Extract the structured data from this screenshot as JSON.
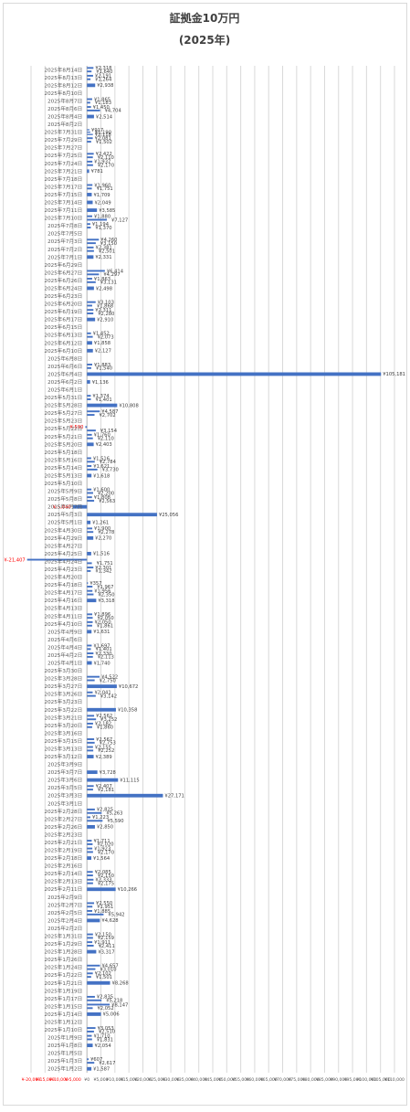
{
  "chart_data": {
    "type": "bar",
    "orientation": "horizontal",
    "title": "証拠金10万円",
    "subtitle": "(2025年)",
    "xlabel": "",
    "ylabel": "",
    "xlim": [
      -20000,
      110000
    ],
    "grid": true,
    "bar_color": "#4472c4",
    "negative_label_color": "#ff0000",
    "tick_labels": [
      "¥-20,000",
      "¥-15,000",
      "¥-10,000",
      "¥-5,000",
      "¥0",
      "¥5,000",
      "¥10,000",
      "¥15,000",
      "¥20,000",
      "¥25,000",
      "¥30,000",
      "¥35,000",
      "¥40,000",
      "¥45,000",
      "¥50,000",
      "¥55,000",
      "¥60,000",
      "¥65,000",
      "¥70,000",
      "¥75,000",
      "¥80,000",
      "¥85,000",
      "¥90,000",
      "¥95,000",
      "¥100,000",
      "¥105,000",
      "¥110,000"
    ],
    "tick_values": [
      -20000,
      -15000,
      -10000,
      -5000,
      0,
      5000,
      10000,
      15000,
      20000,
      25000,
      30000,
      35000,
      40000,
      45000,
      50000,
      55000,
      60000,
      65000,
      70000,
      75000,
      80000,
      85000,
      90000,
      95000,
      100000,
      105000,
      110000
    ],
    "rows": [
      {
        "date": "2025年8月14日",
        "values": [
          2318,
          1640
        ]
      },
      {
        "date": "2025年8月13日",
        "values": [
          2191,
          1264
        ]
      },
      {
        "date": "2025年8月12日",
        "values": [
          2938
        ]
      },
      {
        "date": "2025年8月10日",
        "values": []
      },
      {
        "date": "2025年8月7日",
        "values": [
          1865,
          1183
        ]
      },
      {
        "date": "2025年8月6日",
        "values": [
          1450,
          4704
        ]
      },
      {
        "date": "2025年8月4日",
        "values": [
          2514
        ]
      },
      {
        "date": "2025年8月2日",
        "values": []
      },
      {
        "date": "2025年7月31日",
        "values": [
          917,
          1190,
          2118
        ]
      },
      {
        "date": "2025年7月29日",
        "values": [
          2081,
          1502
        ]
      },
      {
        "date": "2025年7月27日",
        "values": []
      },
      {
        "date": "2025年7月25日",
        "values": [
          2422,
          2110
        ]
      },
      {
        "date": "2025年7月24日",
        "values": [
          1937,
          2170
        ]
      },
      {
        "date": "2025年7月21日",
        "values": [
          781
        ]
      },
      {
        "date": "2025年7月18日",
        "values": []
      },
      {
        "date": "2025年7月17日",
        "values": [
          1960,
          1751
        ]
      },
      {
        "date": "2025年7月15日",
        "values": [
          1709
        ]
      },
      {
        "date": "2025年7月14日",
        "values": [
          2049
        ]
      },
      {
        "date": "2025年7月11日",
        "values": [
          3585
        ]
      },
      {
        "date": "2025年7月10日",
        "values": [
          1880,
          7127
        ]
      },
      {
        "date": "2025年7月8日",
        "values": [
          1194,
          1370
        ]
      },
      {
        "date": "2025年7月5日",
        "values": []
      },
      {
        "date": "2025年7月3日",
        "values": [
          4260,
          3150
        ]
      },
      {
        "date": "2025年7月2日",
        "values": [
          2381,
          2501
        ]
      },
      {
        "date": "2025年7月1日",
        "values": [
          2331
        ]
      },
      {
        "date": "2025年6月29日",
        "values": []
      },
      {
        "date": "2025年6月27日",
        "values": [
          6414,
          4297
        ]
      },
      {
        "date": "2025年6月26日",
        "values": [
          1863,
          3131
        ]
      },
      {
        "date": "2025年6月24日",
        "values": [
          2498
        ]
      },
      {
        "date": "2025年6月23日",
        "values": []
      },
      {
        "date": "2025年6月20日",
        "values": [
          3103,
          1868
        ]
      },
      {
        "date": "2025年6月19日",
        "values": [
          2311,
          2280
        ]
      },
      {
        "date": "2025年6月17日",
        "values": [
          2910
        ]
      },
      {
        "date": "2025年6月15日",
        "values": []
      },
      {
        "date": "2025年6月13日",
        "values": [
          1452,
          2073
        ]
      },
      {
        "date": "2025年6月12日",
        "values": [
          1858
        ]
      },
      {
        "date": "2025年6月10日",
        "values": [
          2127
        ]
      },
      {
        "date": "2025年6月8日",
        "values": []
      },
      {
        "date": "2025年6月6日",
        "values": [
          1883,
          1540
        ]
      },
      {
        "date": "2025年6月4日",
        "values": [
          105181
        ]
      },
      {
        "date": "2025年6月2日",
        "values": [
          1136
        ]
      },
      {
        "date": "2025年6月1日",
        "values": []
      },
      {
        "date": "2025年5月31日",
        "values": [
          1374,
          1401
        ]
      },
      {
        "date": "2025年5月28日",
        "values": [
          10808
        ]
      },
      {
        "date": "2025年5月27日",
        "values": [
          4587,
          2702
        ]
      },
      {
        "date": "2025年5月23日",
        "values": []
      },
      {
        "date": "2025年5月22日",
        "values": [
          -590,
          3154
        ]
      },
      {
        "date": "2025年5月21日",
        "values": [
          1760,
          2110
        ]
      },
      {
        "date": "2025年5月20日",
        "values": [
          2403
        ]
      },
      {
        "date": "2025年5月18日",
        "values": []
      },
      {
        "date": "2025年5月16日",
        "values": [
          1516,
          2784
        ]
      },
      {
        "date": "2025年5月14日",
        "values": [
          1621,
          3730
        ]
      },
      {
        "date": "2025年5月13日",
        "values": [
          1618
        ]
      },
      {
        "date": "2025年5月10日",
        "values": []
      },
      {
        "date": "2025年5月9日",
        "values": [
          1600,
          2200
        ]
      },
      {
        "date": "2025年5月8日",
        "values": [
          1808,
          2563
        ]
      },
      {
        "date": "2025年5月7日",
        "values": [
          -5040
        ]
      },
      {
        "date": "2025年5月3日",
        "values": [
          25056
        ]
      },
      {
        "date": "2025年5月1日",
        "values": [
          1261
        ]
      },
      {
        "date": "2025年4月30日",
        "values": [
          1900,
          2278
        ]
      },
      {
        "date": "2025年4月29日",
        "values": [
          2270
        ]
      },
      {
        "date": "2025年4月27日",
        "values": []
      },
      {
        "date": "2025年4月25日",
        "values": [
          1516
        ]
      },
      {
        "date": "2025年4月24日",
        "values": [
          -21407,
          1751
        ]
      },
      {
        "date": "2025年4月23日",
        "values": [
          2301,
          1342
        ]
      },
      {
        "date": "2025年4月20日",
        "values": []
      },
      {
        "date": "2025年4月18日",
        "values": [
          357,
          1967
        ]
      },
      {
        "date": "2025年4月17日",
        "values": [
          1956,
          2350
        ]
      },
      {
        "date": "2025年4月16日",
        "values": [
          3318
        ]
      },
      {
        "date": "2025年4月13日",
        "values": []
      },
      {
        "date": "2025年4月11日",
        "values": [
          1896,
          2050
        ]
      },
      {
        "date": "2025年4月10日",
        "values": [
          2050,
          1861
        ]
      },
      {
        "date": "2025年4月9日",
        "values": [
          1631
        ]
      },
      {
        "date": "2025年4月6日",
        "values": []
      },
      {
        "date": "2025年4月4日",
        "values": [
          1697,
          1401
        ]
      },
      {
        "date": "2025年4月2日",
        "values": [
          2330,
          2113
        ]
      },
      {
        "date": "2025年4月1日",
        "values": [
          1740
        ]
      },
      {
        "date": "2025年3月30日",
        "values": []
      },
      {
        "date": "2025年3月28日",
        "values": [
          4522,
          2750
        ]
      },
      {
        "date": "2025年3月27日",
        "values": [
          10672
        ]
      },
      {
        "date": "2025年3月26日",
        "values": [
          2041,
          3142
        ]
      },
      {
        "date": "2025年3月23日",
        "values": []
      },
      {
        "date": "2025年3月22日",
        "values": [
          10358
        ]
      },
      {
        "date": "2025年3月21日",
        "values": [
          2562,
          3252
        ]
      },
      {
        "date": "2025年3月20日",
        "values": [
          2182,
          1860
        ]
      },
      {
        "date": "2025年3月16日",
        "values": []
      },
      {
        "date": "2025年3月15日",
        "values": [
          2567,
          2753
        ]
      },
      {
        "date": "2025年3月13日",
        "values": [
          2155,
          2252
        ]
      },
      {
        "date": "2025年3月12日",
        "values": [
          2389
        ]
      },
      {
        "date": "2025年3月9日",
        "values": []
      },
      {
        "date": "2025年3月7日",
        "values": [
          3728
        ]
      },
      {
        "date": "2025年3月6日",
        "values": [
          11115
        ]
      },
      {
        "date": "2025年3月5日",
        "values": [
          2407,
          2181
        ]
      },
      {
        "date": "2025年3月3日",
        "values": [
          27171
        ]
      },
      {
        "date": "2025年3月1日",
        "values": []
      },
      {
        "date": "2025年2月28日",
        "values": [
          2825,
          5263
        ]
      },
      {
        "date": "2025年2月27日",
        "values": [
          1223,
          5590
        ]
      },
      {
        "date": "2025年2月26日",
        "values": [
          2850
        ]
      },
      {
        "date": "2025年2月23日",
        "values": []
      },
      {
        "date": "2025年2月21日",
        "values": [
          1711,
          2020
        ]
      },
      {
        "date": "2025年2月19日",
        "values": [
          1923,
          2170
        ]
      },
      {
        "date": "2025年2月18日",
        "values": [
          1564
        ]
      },
      {
        "date": "2025年2月16日",
        "values": []
      },
      {
        "date": "2025年2月14日",
        "values": [
          2085,
          2150
        ]
      },
      {
        "date": "2025年2月13日",
        "values": [
          2333,
          2175
        ]
      },
      {
        "date": "2025年2月11日",
        "values": [
          10266
        ]
      },
      {
        "date": "2025年2月9日",
        "values": []
      },
      {
        "date": "2025年2月7日",
        "values": [
          2550,
          1951
        ]
      },
      {
        "date": "2025年2月5日",
        "values": [
          1885,
          5942
        ]
      },
      {
        "date": "2025年2月4日",
        "values": [
          4628
        ]
      },
      {
        "date": "2025年2月2日",
        "values": []
      },
      {
        "date": "2025年1月31日",
        "values": [
          2150,
          2159
        ]
      },
      {
        "date": "2025年1月29日",
        "values": [
          1911,
          2411
        ]
      },
      {
        "date": "2025年1月28日",
        "values": [
          3317
        ]
      },
      {
        "date": "2025年1月26日",
        "values": []
      },
      {
        "date": "2025年1月24日",
        "values": [
          4657,
          3010
        ]
      },
      {
        "date": "2025年1月22日",
        "values": [
          2102,
          1501
        ]
      },
      {
        "date": "2025年1月21日",
        "values": [
          8268
        ]
      },
      {
        "date": "2025年1月19日",
        "values": []
      },
      {
        "date": "2025年1月17日",
        "values": [
          2835,
          5218
        ]
      },
      {
        "date": "2025年1月15日",
        "values": [
          8147,
          2052
        ]
      },
      {
        "date": "2025年1月14日",
        "values": [
          5006
        ]
      },
      {
        "date": "2025年1月12日",
        "values": []
      },
      {
        "date": "2025年1月10日",
        "values": [
          3053,
          2510
        ]
      },
      {
        "date": "2025年1月9日",
        "values": [
          1710,
          1831
        ]
      },
      {
        "date": "2025年1月8日",
        "values": [
          2054
        ]
      },
      {
        "date": "2025年1月5日",
        "values": []
      },
      {
        "date": "2025年1月3日",
        "values": [
          607,
          2617
        ]
      },
      {
        "date": "2025年1月2日",
        "values": [
          1587
        ]
      }
    ]
  }
}
